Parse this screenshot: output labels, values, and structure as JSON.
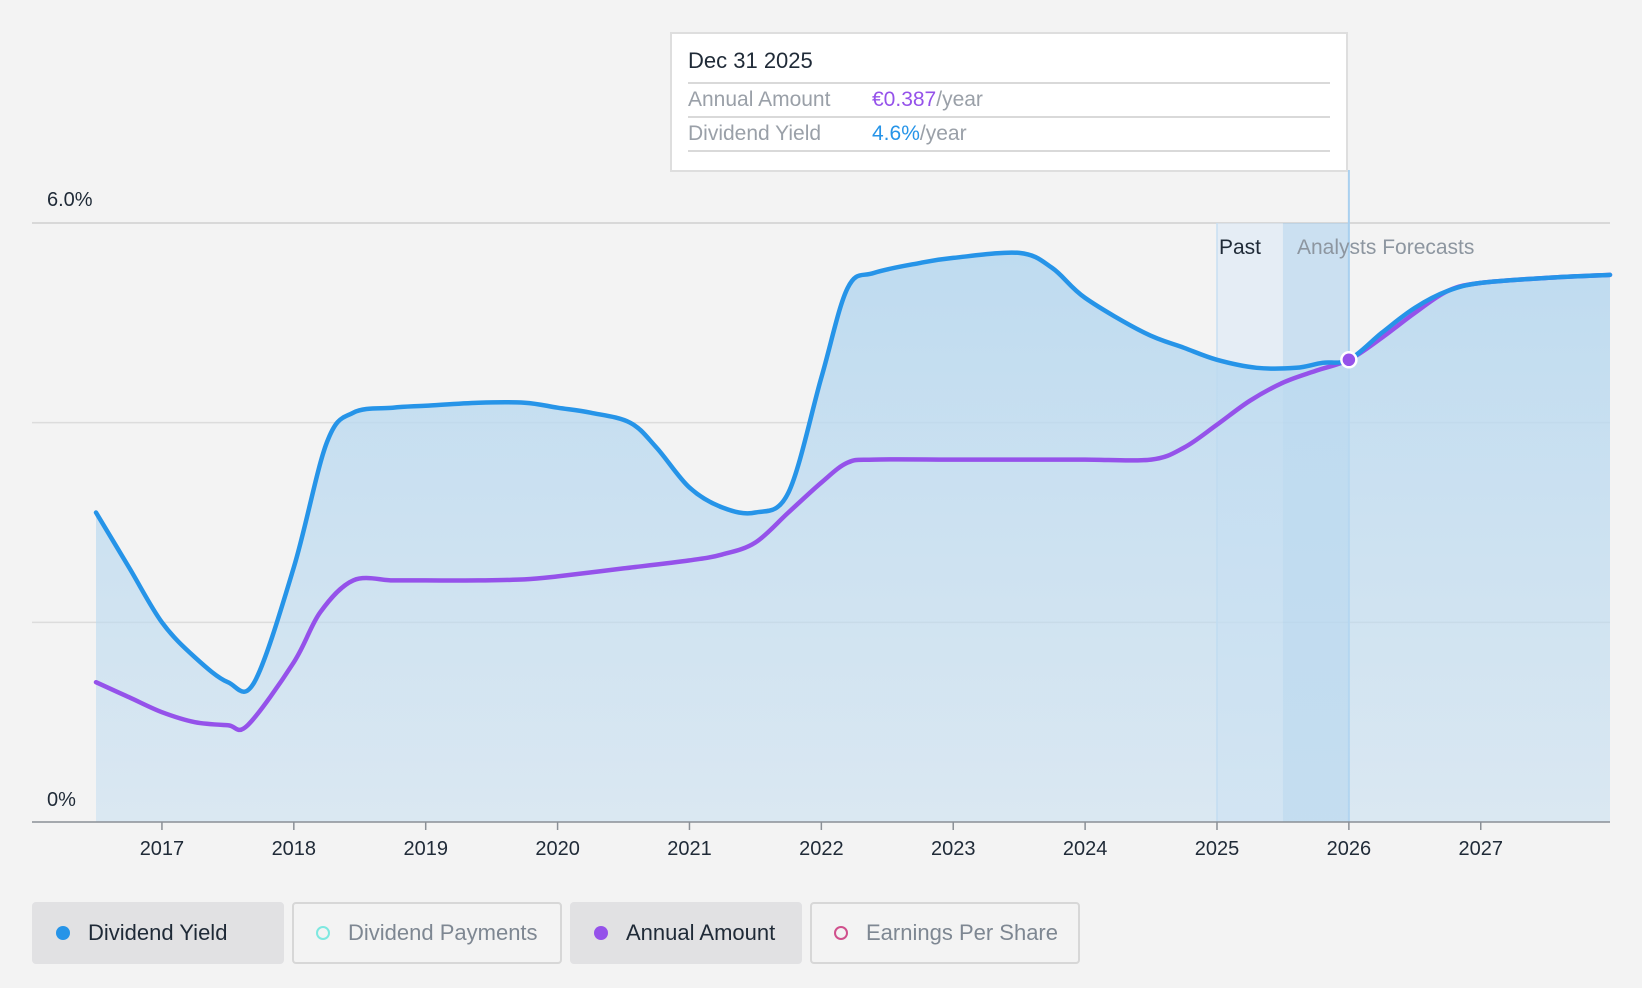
{
  "colors": {
    "dividend_yield": "#2694e8",
    "annual_amount": "#9552ea",
    "dividend_payments": "#7ee8e0",
    "earnings_per_share": "#d0508c",
    "area_fill": "#bcdaf0"
  },
  "tooltip": {
    "date": "Dec 31 2025",
    "rows": [
      {
        "label": "Annual Amount",
        "value": "€0.387",
        "unit": "/year"
      },
      {
        "label": "Dividend Yield",
        "value": "4.6%",
        "unit": "/year"
      }
    ]
  },
  "legend": [
    {
      "label": "Dividend Yield",
      "active": true
    },
    {
      "label": "Dividend Payments",
      "active": false
    },
    {
      "label": "Annual Amount",
      "active": true
    },
    {
      "label": "Earnings Per Share",
      "active": false
    }
  ],
  "chart_data": {
    "type": "area",
    "y_ticks": [
      "6.0%",
      "0%"
    ],
    "ylim": [
      0,
      6.0
    ],
    "xlim": [
      2016.5,
      2027.98
    ],
    "x_ticks": [
      2017,
      2018,
      2019,
      2020,
      2021,
      2022,
      2023,
      2024,
      2025,
      2026,
      2027
    ],
    "grid": true,
    "region_labels": {
      "past": "Past",
      "forecast": "Analysts Forecasts"
    },
    "past_region": [
      2025.0,
      2025.5
    ],
    "forecast_highlight": [
      2025.5,
      2026.0
    ],
    "cursor_x": 2026.0,
    "series": [
      {
        "name": "Dividend Yield",
        "unit": "%",
        "points": [
          [
            2016.5,
            3.1
          ],
          [
            2016.75,
            2.55
          ],
          [
            2017.0,
            2.0
          ],
          [
            2017.25,
            1.65
          ],
          [
            2017.5,
            1.4
          ],
          [
            2017.7,
            1.4
          ],
          [
            2018.0,
            2.55
          ],
          [
            2018.25,
            3.8
          ],
          [
            2018.45,
            4.1
          ],
          [
            2018.75,
            4.15
          ],
          [
            2019.0,
            4.17
          ],
          [
            2019.4,
            4.2
          ],
          [
            2019.75,
            4.2
          ],
          [
            2020.0,
            4.15
          ],
          [
            2020.25,
            4.1
          ],
          [
            2020.55,
            4.0
          ],
          [
            2020.75,
            3.75
          ],
          [
            2021.0,
            3.35
          ],
          [
            2021.25,
            3.15
          ],
          [
            2021.5,
            3.1
          ],
          [
            2021.75,
            3.3
          ],
          [
            2022.0,
            4.45
          ],
          [
            2022.2,
            5.35
          ],
          [
            2022.4,
            5.5
          ],
          [
            2022.75,
            5.6
          ],
          [
            2023.0,
            5.65
          ],
          [
            2023.5,
            5.7
          ],
          [
            2023.75,
            5.55
          ],
          [
            2024.0,
            5.25
          ],
          [
            2024.45,
            4.9
          ],
          [
            2024.75,
            4.75
          ],
          [
            2025.0,
            4.63
          ],
          [
            2025.3,
            4.55
          ],
          [
            2025.6,
            4.55
          ],
          [
            2025.8,
            4.6
          ],
          [
            2026.0,
            4.63
          ],
          [
            2026.25,
            4.9
          ],
          [
            2026.5,
            5.15
          ],
          [
            2026.75,
            5.32
          ],
          [
            2027.0,
            5.4
          ],
          [
            2027.5,
            5.45
          ],
          [
            2027.98,
            5.48
          ]
        ]
      },
      {
        "name": "Annual Amount",
        "unit": "€",
        "points": [
          [
            2016.5,
            1.4
          ],
          [
            2016.75,
            1.25
          ],
          [
            2017.0,
            1.1
          ],
          [
            2017.25,
            1.0
          ],
          [
            2017.5,
            0.97
          ],
          [
            2017.65,
            0.97
          ],
          [
            2018.0,
            1.6
          ],
          [
            2018.2,
            2.1
          ],
          [
            2018.45,
            2.42
          ],
          [
            2018.75,
            2.42
          ],
          [
            2019.0,
            2.42
          ],
          [
            2019.4,
            2.42
          ],
          [
            2019.75,
            2.43
          ],
          [
            2020.0,
            2.46
          ],
          [
            2020.5,
            2.54
          ],
          [
            2021.0,
            2.62
          ],
          [
            2021.25,
            2.68
          ],
          [
            2021.5,
            2.8
          ],
          [
            2021.75,
            3.1
          ],
          [
            2022.0,
            3.4
          ],
          [
            2022.2,
            3.6
          ],
          [
            2022.4,
            3.63
          ],
          [
            2023.0,
            3.63
          ],
          [
            2023.5,
            3.63
          ],
          [
            2024.0,
            3.63
          ],
          [
            2024.5,
            3.63
          ],
          [
            2024.75,
            3.75
          ],
          [
            2025.0,
            3.98
          ],
          [
            2025.25,
            4.22
          ],
          [
            2025.5,
            4.4
          ],
          [
            2025.75,
            4.52
          ],
          [
            2026.0,
            4.63
          ],
          [
            2026.25,
            4.85
          ],
          [
            2026.5,
            5.1
          ],
          [
            2026.75,
            5.32
          ],
          [
            2027.0,
            5.4
          ],
          [
            2027.5,
            5.45
          ],
          [
            2027.98,
            5.48
          ]
        ]
      }
    ]
  }
}
